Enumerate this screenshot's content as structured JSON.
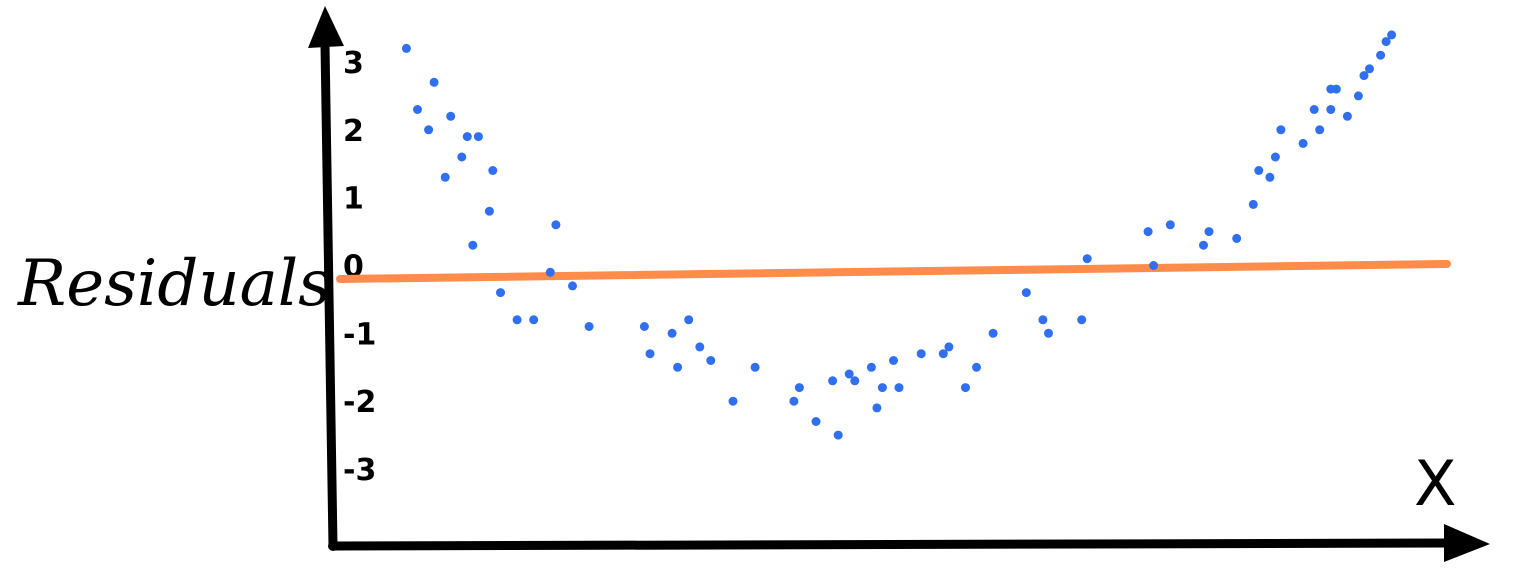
{
  "chart_data": {
    "type": "scatter",
    "title": "",
    "xlabel": "X",
    "ylabel": "Residuals",
    "yticks": [
      "3",
      "2",
      "1",
      "0",
      "-1",
      "-2",
      "-3"
    ],
    "ylim": [
      -3,
      3
    ],
    "xlim": [
      0,
      100
    ],
    "grid": false,
    "legend": "none",
    "colors": {
      "points": "#2f6ff0",
      "zero_line": "#ff8c4a",
      "axes": "#000000"
    },
    "zero_line_y": 0,
    "x": [
      6,
      7,
      8,
      8.5,
      9.5,
      10,
      11,
      11.5,
      12,
      12.5,
      13.5,
      13.8,
      14.5,
      16,
      17.5,
      19,
      19.5,
      21,
      22.5,
      27.5,
      28,
      30,
      30.5,
      31.5,
      32.5,
      33.5,
      35.5,
      37.5,
      41,
      41.5,
      43,
      44.5,
      45,
      46,
      46.5,
      48,
      48.5,
      49,
      50,
      50.5,
      52.5,
      54.5,
      55,
      56.5,
      57.5,
      59,
      62,
      63.5,
      64,
      67,
      67.5,
      73,
      73.5,
      75,
      78,
      78.5,
      81,
      82.5,
      83,
      84,
      84.5,
      85,
      87,
      88,
      88.5,
      89.5,
      89.5,
      90,
      91,
      92,
      92.5,
      93,
      94,
      94.5,
      95
    ],
    "y": [
      3.2,
      2.3,
      2.0,
      2.7,
      1.3,
      2.2,
      1.6,
      1.9,
      0.3,
      1.9,
      0.8,
      1.4,
      -0.4,
      -0.8,
      -0.8,
      -0.1,
      0.6,
      -0.3,
      -0.9,
      -0.9,
      -1.3,
      -1.0,
      -1.5,
      -0.8,
      -1.2,
      -1.4,
      -2.0,
      -1.5,
      -2.0,
      -1.8,
      -2.3,
      -1.7,
      -2.5,
      -1.6,
      -1.7,
      -1.5,
      -2.1,
      -1.8,
      -1.4,
      -1.8,
      -1.3,
      -1.3,
      -1.2,
      -1.8,
      -1.5,
      -1.0,
      -0.4,
      -0.8,
      -1.0,
      -0.8,
      0.1,
      0.5,
      0.0,
      0.6,
      0.3,
      0.5,
      0.4,
      0.9,
      1.4,
      1.3,
      1.6,
      2.0,
      1.8,
      2.3,
      2.0,
      2.3,
      2.6,
      2.6,
      2.2,
      2.5,
      2.8,
      2.9,
      3.1,
      3.3,
      3.4
    ]
  }
}
